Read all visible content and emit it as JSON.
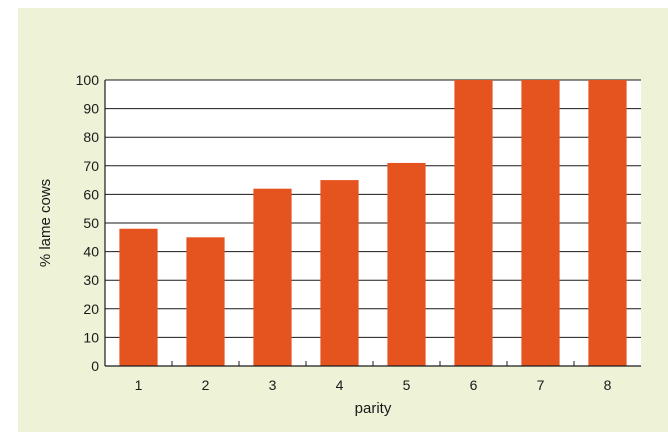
{
  "chart_data": {
    "type": "bar",
    "categories": [
      "1",
      "2",
      "3",
      "4",
      "5",
      "6",
      "7",
      "8"
    ],
    "values": [
      48,
      45,
      62,
      65,
      71,
      100,
      100,
      100
    ],
    "xlabel": "parity",
    "ylabel": "% lame cows",
    "ylim": [
      0,
      100
    ],
    "yticks": [
      0,
      10,
      20,
      30,
      40,
      50,
      60,
      70,
      80,
      90,
      100
    ],
    "grid": true,
    "bar_color": "#e5541f",
    "background_color": "#eef2d6",
    "plot_background_color": "#ffffff"
  }
}
